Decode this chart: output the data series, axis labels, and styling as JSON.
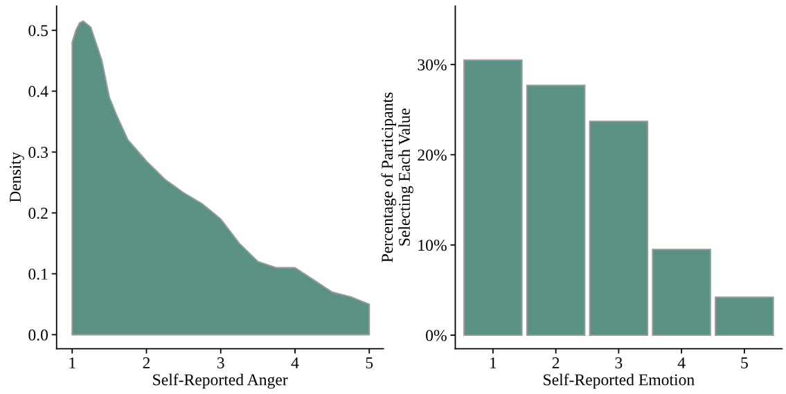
{
  "chart_data": [
    {
      "type": "area",
      "xlabel": "Self-Reported Anger",
      "ylabel": "Density",
      "x": [
        1.0,
        1.05,
        1.1,
        1.15,
        1.25,
        1.4,
        1.5,
        1.6,
        1.75,
        2.0,
        2.25,
        2.5,
        2.75,
        3.0,
        3.25,
        3.5,
        3.75,
        4.0,
        4.25,
        4.5,
        4.75,
        5.0
      ],
      "values": [
        0.48,
        0.5,
        0.512,
        0.515,
        0.505,
        0.45,
        0.39,
        0.36,
        0.32,
        0.285,
        0.255,
        0.233,
        0.215,
        0.19,
        0.15,
        0.12,
        0.11,
        0.11,
        0.09,
        0.07,
        0.062,
        0.05
      ],
      "color": "#5a9184",
      "xlim": [
        0.79,
        5.19
      ],
      "ylim": [
        -0.023,
        0.54
      ],
      "xticks": [
        1,
        2,
        3,
        4,
        5
      ],
      "yticks": [
        {
          "value": 0,
          "label": "0.0"
        },
        0.1,
        0.2,
        0.3,
        0.4,
        0.5
      ],
      "grid": false,
      "legend": false
    },
    {
      "type": "bar",
      "xlabel": "Self-Reported Emotion",
      "ylabel": "Percentage of Participants\nSelecting Each Value",
      "categories": [
        "1",
        "2",
        "3",
        "4",
        "5"
      ],
      "values": [
        30.5,
        27.7,
        23.7,
        9.5,
        4.2
      ],
      "color": "#5a9184",
      "ylim": [
        -1.5,
        36.5
      ],
      "yticks": [
        {
          "value": 0,
          "label": "0%"
        },
        {
          "value": 10,
          "label": "10%"
        },
        {
          "value": 20,
          "label": "20%"
        },
        {
          "value": 30,
          "label": "30%"
        }
      ],
      "grid": false,
      "legend": false
    }
  ]
}
